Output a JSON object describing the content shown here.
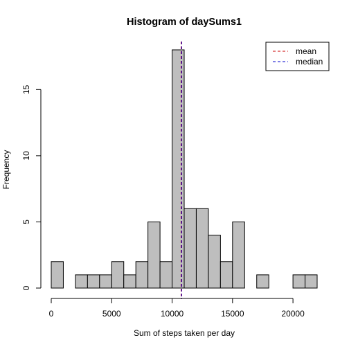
{
  "chart_data": {
    "type": "bar",
    "title": "Histogram of daySums1",
    "xlabel": "Sum of steps taken per day",
    "ylabel": "Frequency",
    "bin_width": 1000,
    "xlim": [
      0,
      22000
    ],
    "ylim": [
      0,
      18
    ],
    "x_ticks": [
      0,
      5000,
      10000,
      15000,
      20000
    ],
    "y_ticks": [
      0,
      5,
      10,
      15
    ],
    "bins": [
      {
        "start": 0,
        "end": 1000,
        "count": 2
      },
      {
        "start": 1000,
        "end": 2000,
        "count": 0
      },
      {
        "start": 2000,
        "end": 3000,
        "count": 1
      },
      {
        "start": 3000,
        "end": 4000,
        "count": 1
      },
      {
        "start": 4000,
        "end": 5000,
        "count": 1
      },
      {
        "start": 5000,
        "end": 6000,
        "count": 2
      },
      {
        "start": 6000,
        "end": 7000,
        "count": 1
      },
      {
        "start": 7000,
        "end": 8000,
        "count": 2
      },
      {
        "start": 8000,
        "end": 9000,
        "count": 5
      },
      {
        "start": 9000,
        "end": 10000,
        "count": 2
      },
      {
        "start": 10000,
        "end": 11000,
        "count": 18
      },
      {
        "start": 11000,
        "end": 12000,
        "count": 6
      },
      {
        "start": 12000,
        "end": 13000,
        "count": 6
      },
      {
        "start": 13000,
        "end": 14000,
        "count": 4
      },
      {
        "start": 14000,
        "end": 15000,
        "count": 2
      },
      {
        "start": 15000,
        "end": 16000,
        "count": 5
      },
      {
        "start": 16000,
        "end": 17000,
        "count": 0
      },
      {
        "start": 17000,
        "end": 18000,
        "count": 1
      },
      {
        "start": 18000,
        "end": 19000,
        "count": 0
      },
      {
        "start": 19000,
        "end": 20000,
        "count": 0
      },
      {
        "start": 20000,
        "end": 21000,
        "count": 1
      },
      {
        "start": 21000,
        "end": 22000,
        "count": 1
      }
    ],
    "bar_color": "#bebebe",
    "reference_lines": [
      {
        "name": "mean",
        "value": 10766,
        "color": "#cc0000",
        "dash": "dashed"
      },
      {
        "name": "median",
        "value": 10766,
        "color": "#0000cc",
        "dash": "dashed"
      }
    ],
    "legend": {
      "position": "top-right",
      "entries": [
        "mean",
        "median"
      ]
    },
    "grid": false
  }
}
